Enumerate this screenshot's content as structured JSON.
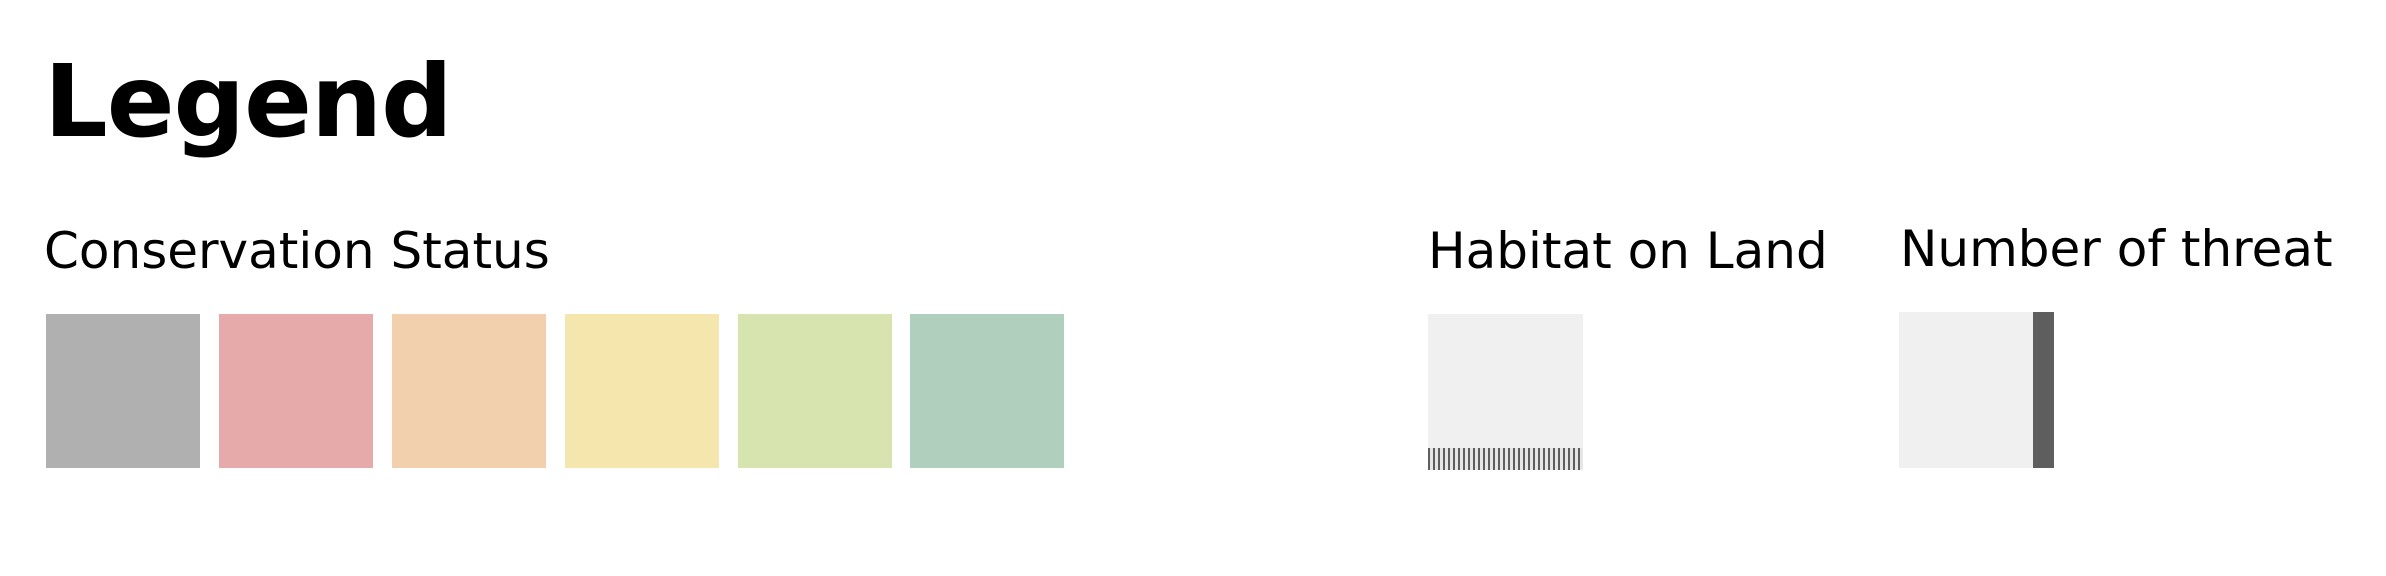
{
  "legend": {
    "title": "Legend"
  },
  "conservation_status": {
    "heading": "Conservation Status",
    "swatches": [
      {
        "color": "#b0b0b0"
      },
      {
        "color": "#e6aaaa"
      },
      {
        "color": "#f2d0ad"
      },
      {
        "color": "#f5e6ae"
      },
      {
        "color": "#d7e4b0"
      },
      {
        "color": "#b0cfbd"
      }
    ]
  },
  "habitat_on_land": {
    "heading": "Habitat on Land",
    "fill_color": "#f0f0f0",
    "stripe_color": "#5e5e5e"
  },
  "number_of_threat": {
    "heading": "Number of threat",
    "fill_color": "#f0f0f0",
    "bar_color": "#5e5e5e"
  }
}
